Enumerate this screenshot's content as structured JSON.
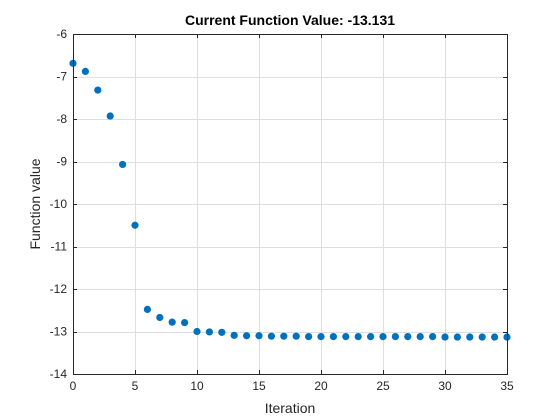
{
  "chart_data": {
    "type": "scatter",
    "title": "Current Function Value: -13.131",
    "xlabel": "Iteration",
    "ylabel": "Function value",
    "xlim": [
      0,
      35
    ],
    "ylim": [
      -14,
      -6
    ],
    "xticks": [
      0,
      5,
      10,
      15,
      20,
      25,
      30,
      35
    ],
    "yticks": [
      -14,
      -13,
      -12,
      -11,
      -10,
      -9,
      -8,
      -7,
      -6
    ],
    "grid": true,
    "marker_color": "#0072BD",
    "series": [
      {
        "x": [
          0,
          1,
          2,
          3,
          4,
          5,
          6,
          7,
          8,
          9,
          10,
          11,
          12,
          13,
          14,
          15,
          16,
          17,
          18,
          19,
          20,
          21,
          22,
          23,
          24,
          25,
          26,
          27,
          28,
          29,
          30,
          31,
          32,
          33,
          34,
          35
        ],
        "values": [
          -6.69,
          -6.88,
          -7.32,
          -7.93,
          -9.07,
          -10.5,
          -12.48,
          -12.67,
          -12.78,
          -12.79,
          -13.0,
          -13.01,
          -13.02,
          -13.09,
          -13.1,
          -13.1,
          -13.11,
          -13.11,
          -13.11,
          -13.12,
          -13.12,
          -13.12,
          -13.12,
          -13.12,
          -13.12,
          -13.12,
          -13.12,
          -13.12,
          -13.12,
          -13.12,
          -13.13,
          -13.13,
          -13.13,
          -13.13,
          -13.13,
          -13.13
        ]
      }
    ]
  }
}
